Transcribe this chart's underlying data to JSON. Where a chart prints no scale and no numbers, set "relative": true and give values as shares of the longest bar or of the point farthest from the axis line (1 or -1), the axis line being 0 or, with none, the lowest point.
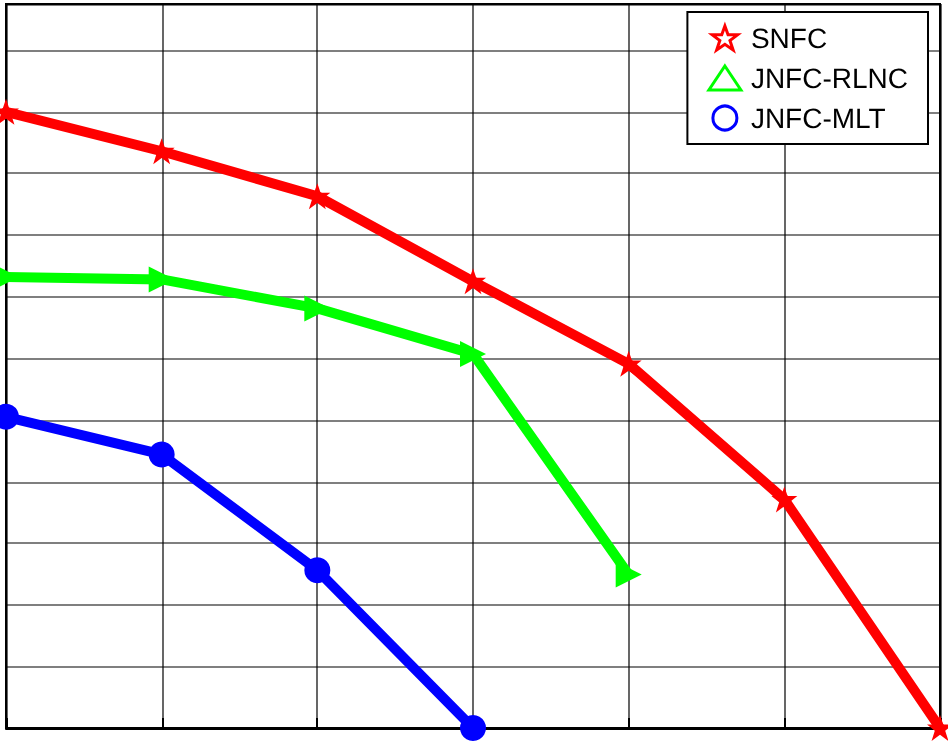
{
  "chart_data": {
    "type": "line",
    "relative": true,
    "categories": [
      null,
      null,
      null,
      null,
      null,
      null,
      null
    ],
    "series": [
      {
        "name": "SNFC",
        "color": "#ff0000",
        "marker": "star",
        "values": [
          1,
          0.936,
          0.863,
          0.725,
          0.591,
          0.371,
          0
        ]
      },
      {
        "name": "JNFC-RLNC",
        "color": "#00ff00",
        "marker": "triangle",
        "values": [
          0.732,
          0.728,
          0.681,
          0.607,
          0.249,
          null,
          null
        ]
      },
      {
        "name": "JNFC-MLT",
        "color": "#0000ff",
        "marker": "circle",
        "values": [
          0.505,
          0.444,
          0.256,
          0,
          null,
          null,
          null
        ]
      }
    ],
    "grid": true,
    "legend": "top right",
    "line_style": "solid"
  }
}
